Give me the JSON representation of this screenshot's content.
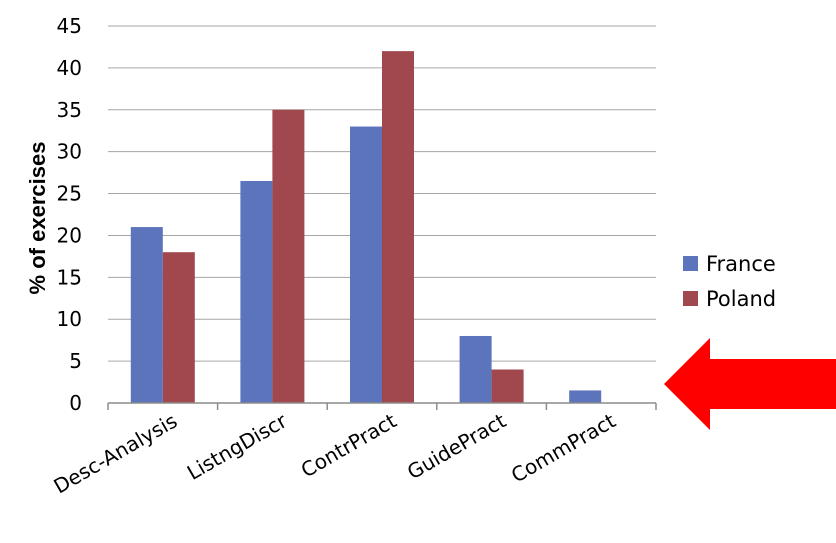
{
  "chart_data": {
    "type": "bar",
    "title": "",
    "xlabel": "",
    "ylabel": "% of exercises",
    "ylim": [
      0,
      45
    ],
    "yticks": [
      0,
      5,
      10,
      15,
      20,
      25,
      30,
      35,
      40,
      45
    ],
    "grid": true,
    "legend_position": "right",
    "categories": [
      "Desc-Analysis",
      "ListngDiscr",
      "ContrPract",
      "GuidePract",
      "CommPract"
    ],
    "series": [
      {
        "name": "France",
        "color": "#5b74bb",
        "values": [
          21,
          26.5,
          33,
          8,
          1.5
        ]
      },
      {
        "name": "Poland",
        "color": "#a0484e",
        "values": [
          18,
          35,
          42,
          4,
          0
        ]
      }
    ]
  },
  "annotation": {
    "arrow_icon": "left-arrow-icon",
    "color": "#ff0000"
  }
}
